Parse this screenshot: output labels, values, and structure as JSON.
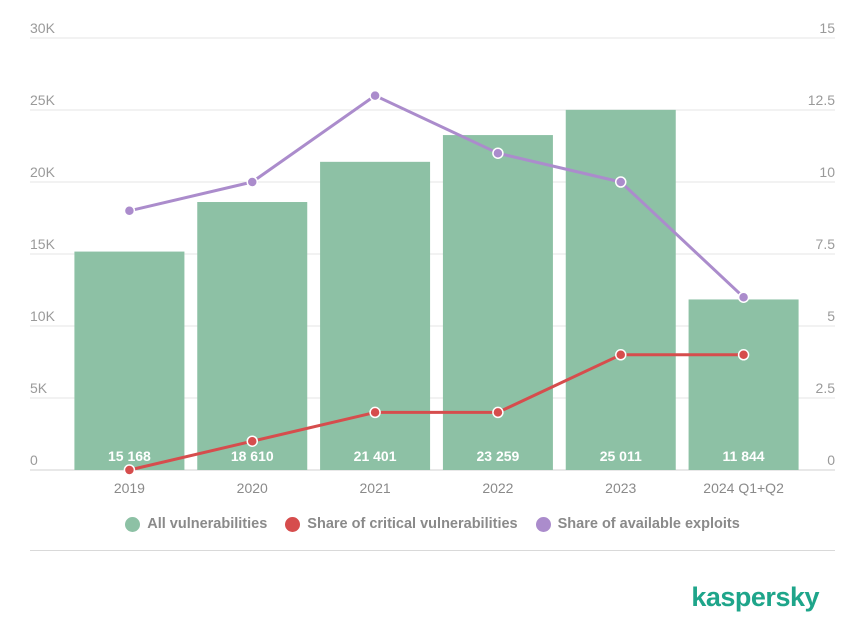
{
  "chart_data": {
    "type": "bar",
    "categories": [
      "2019",
      "2020",
      "2021",
      "2022",
      "2023",
      "2024 Q1+Q2"
    ],
    "series": [
      {
        "name": "All vulnerabilities",
        "type": "bar",
        "axis": "left",
        "color": "#8dc1a5",
        "values": [
          15168,
          18610,
          21401,
          23259,
          25011,
          11844
        ],
        "labels": [
          "15 168",
          "18 610",
          "21 401",
          "23 259",
          "25 011",
          "11 844"
        ]
      },
      {
        "name": "Share of critical vulnerabilities",
        "type": "line",
        "axis": "right",
        "color": "#d64d4d",
        "values": [
          0,
          1,
          2,
          2,
          4,
          4
        ]
      },
      {
        "name": "Share of available exploits",
        "type": "line",
        "axis": "right",
        "color": "#ab8ccc",
        "values": [
          9,
          10,
          13,
          11,
          10,
          6
        ]
      }
    ],
    "left_axis": {
      "ylim": [
        0,
        30000
      ],
      "ticks": [
        "0",
        "5K",
        "10K",
        "15K",
        "20K",
        "25K",
        "30K"
      ]
    },
    "right_axis": {
      "ylim": [
        0,
        15
      ],
      "ticks": [
        "0",
        "2.5",
        "5",
        "7.5",
        "10",
        "12.5",
        "15"
      ]
    },
    "grid": true,
    "legend_position": "bottom"
  },
  "brand": {
    "logo_text": "kaspersky",
    "color": "#1ea58a"
  }
}
